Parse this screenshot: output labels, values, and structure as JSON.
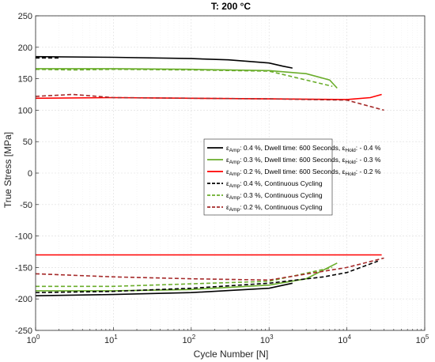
{
  "chart_data": {
    "type": "line",
    "title": "T: 200 °C",
    "xlabel": "Cycle Number [N]",
    "ylabel": "True Stress [MPa]",
    "xscale": "log",
    "xlim": [
      1,
      100000
    ],
    "ylim": [
      -250,
      250
    ],
    "grid": true,
    "legend_position": "right-center",
    "x_ticks": [
      {
        "value": 1,
        "label": "10",
        "exp": "0"
      },
      {
        "value": 10,
        "label": "10",
        "exp": "1"
      },
      {
        "value": 100,
        "label": "10",
        "exp": "2"
      },
      {
        "value": 1000,
        "label": "10",
        "exp": "3"
      },
      {
        "value": 10000,
        "label": "10",
        "exp": "4"
      },
      {
        "value": 100000,
        "label": "10",
        "exp": "5"
      }
    ],
    "y_ticks": [
      "-250",
      "-200",
      "-150",
      "-100",
      "-50",
      "0",
      "50",
      "100",
      "150",
      "200",
      "250"
    ],
    "series": [
      {
        "legend": [
          {
            "t": "ε"
          },
          {
            "t": "Amp",
            "sub": true
          },
          {
            "t": ": 0.4 %, Dwell time: 600 Seconds, ε"
          },
          {
            "t": "Hold",
            "sub": true
          },
          {
            "t": ": - 0.4 %"
          }
        ],
        "color": "#000000",
        "dash": false,
        "upper": {
          "x": [
            1,
            10,
            100,
            300,
            1000,
            1500,
            2000
          ],
          "y": [
            185,
            184,
            182,
            180,
            175,
            170,
            167
          ]
        },
        "lower": {
          "x": [
            1,
            10,
            100,
            1000,
            2000
          ],
          "y": [
            -195,
            -193,
            -190,
            -183,
            -175
          ]
        }
      },
      {
        "legend": [
          {
            "t": "ε"
          },
          {
            "t": "Amp",
            "sub": true
          },
          {
            "t": ": 0.3 %, Dwell time: 600 Seconds, ε"
          },
          {
            "t": "Hold",
            "sub": true
          },
          {
            "t": ": - 0.3 %"
          }
        ],
        "color": "#6aad2b",
        "dash": false,
        "upper": {
          "x": [
            1,
            10,
            100,
            1000,
            3000,
            6000,
            7500
          ],
          "y": [
            166,
            166,
            165,
            163,
            158,
            148,
            135
          ]
        },
        "lower": {
          "x": [
            1,
            10,
            100,
            1000,
            3000,
            7500
          ],
          "y": [
            -187,
            -187,
            -185,
            -178,
            -168,
            -143
          ]
        }
      },
      {
        "legend": [
          {
            "t": "ε"
          },
          {
            "t": "Amp",
            "sub": true
          },
          {
            "t": ": 0.2 %, Dwell time: 600 Seconds, ε"
          },
          {
            "t": "Hold",
            "sub": true
          },
          {
            "t": ": - 0.2 %"
          }
        ],
        "color": "#ff0000",
        "dash": false,
        "upper": {
          "x": [
            1,
            10,
            100,
            1000,
            10000,
            20000,
            28000
          ],
          "y": [
            119,
            120,
            119,
            118,
            117,
            120,
            125
          ]
        },
        "lower": {
          "x": [
            1,
            10,
            100,
            1000,
            10000,
            28000
          ],
          "y": [
            -130,
            -130,
            -130,
            -130,
            -130,
            -130
          ]
        }
      },
      {
        "legend": [
          {
            "t": "ε"
          },
          {
            "t": "Amp",
            "sub": true
          },
          {
            "t": ": 0.4 %, Continuous Cycling"
          }
        ],
        "color": "#000000",
        "dash": true,
        "upper": {
          "x": [
            1,
            2
          ],
          "y": [
            183,
            183
          ]
        },
        "lower": {
          "x": [
            1,
            10,
            100,
            1000,
            5000,
            10000,
            25000
          ],
          "y": [
            -190,
            -188,
            -183,
            -175,
            -165,
            -158,
            -140
          ]
        }
      },
      {
        "legend": [
          {
            "t": "ε"
          },
          {
            "t": "Amp",
            "sub": true
          },
          {
            "t": ": 0.3 %, Continuous Cycling"
          }
        ],
        "color": "#6aad2b",
        "dash": true,
        "upper": {
          "x": [
            1,
            3,
            10,
            100,
            1000,
            6500
          ],
          "y": [
            165,
            164,
            165,
            164,
            162,
            138
          ]
        },
        "lower": {
          "x": [
            1,
            10,
            100,
            1000,
            6500
          ],
          "y": [
            -180,
            -180,
            -176,
            -172,
            -150
          ]
        }
      },
      {
        "legend": [
          {
            "t": "ε"
          },
          {
            "t": "Amp",
            "sub": true
          },
          {
            "t": ": 0.2 %, Continuous Cycling"
          }
        ],
        "color": "#a52a2a",
        "dash": true,
        "upper": {
          "x": [
            1,
            3,
            10,
            100,
            1000,
            10000,
            30000
          ],
          "y": [
            122,
            125,
            120,
            119,
            118,
            116,
            100
          ]
        },
        "lower": {
          "x": [
            1,
            10,
            100,
            1000,
            10000,
            30000
          ],
          "y": [
            -160,
            -165,
            -168,
            -170,
            -150,
            -135
          ]
        }
      }
    ]
  }
}
